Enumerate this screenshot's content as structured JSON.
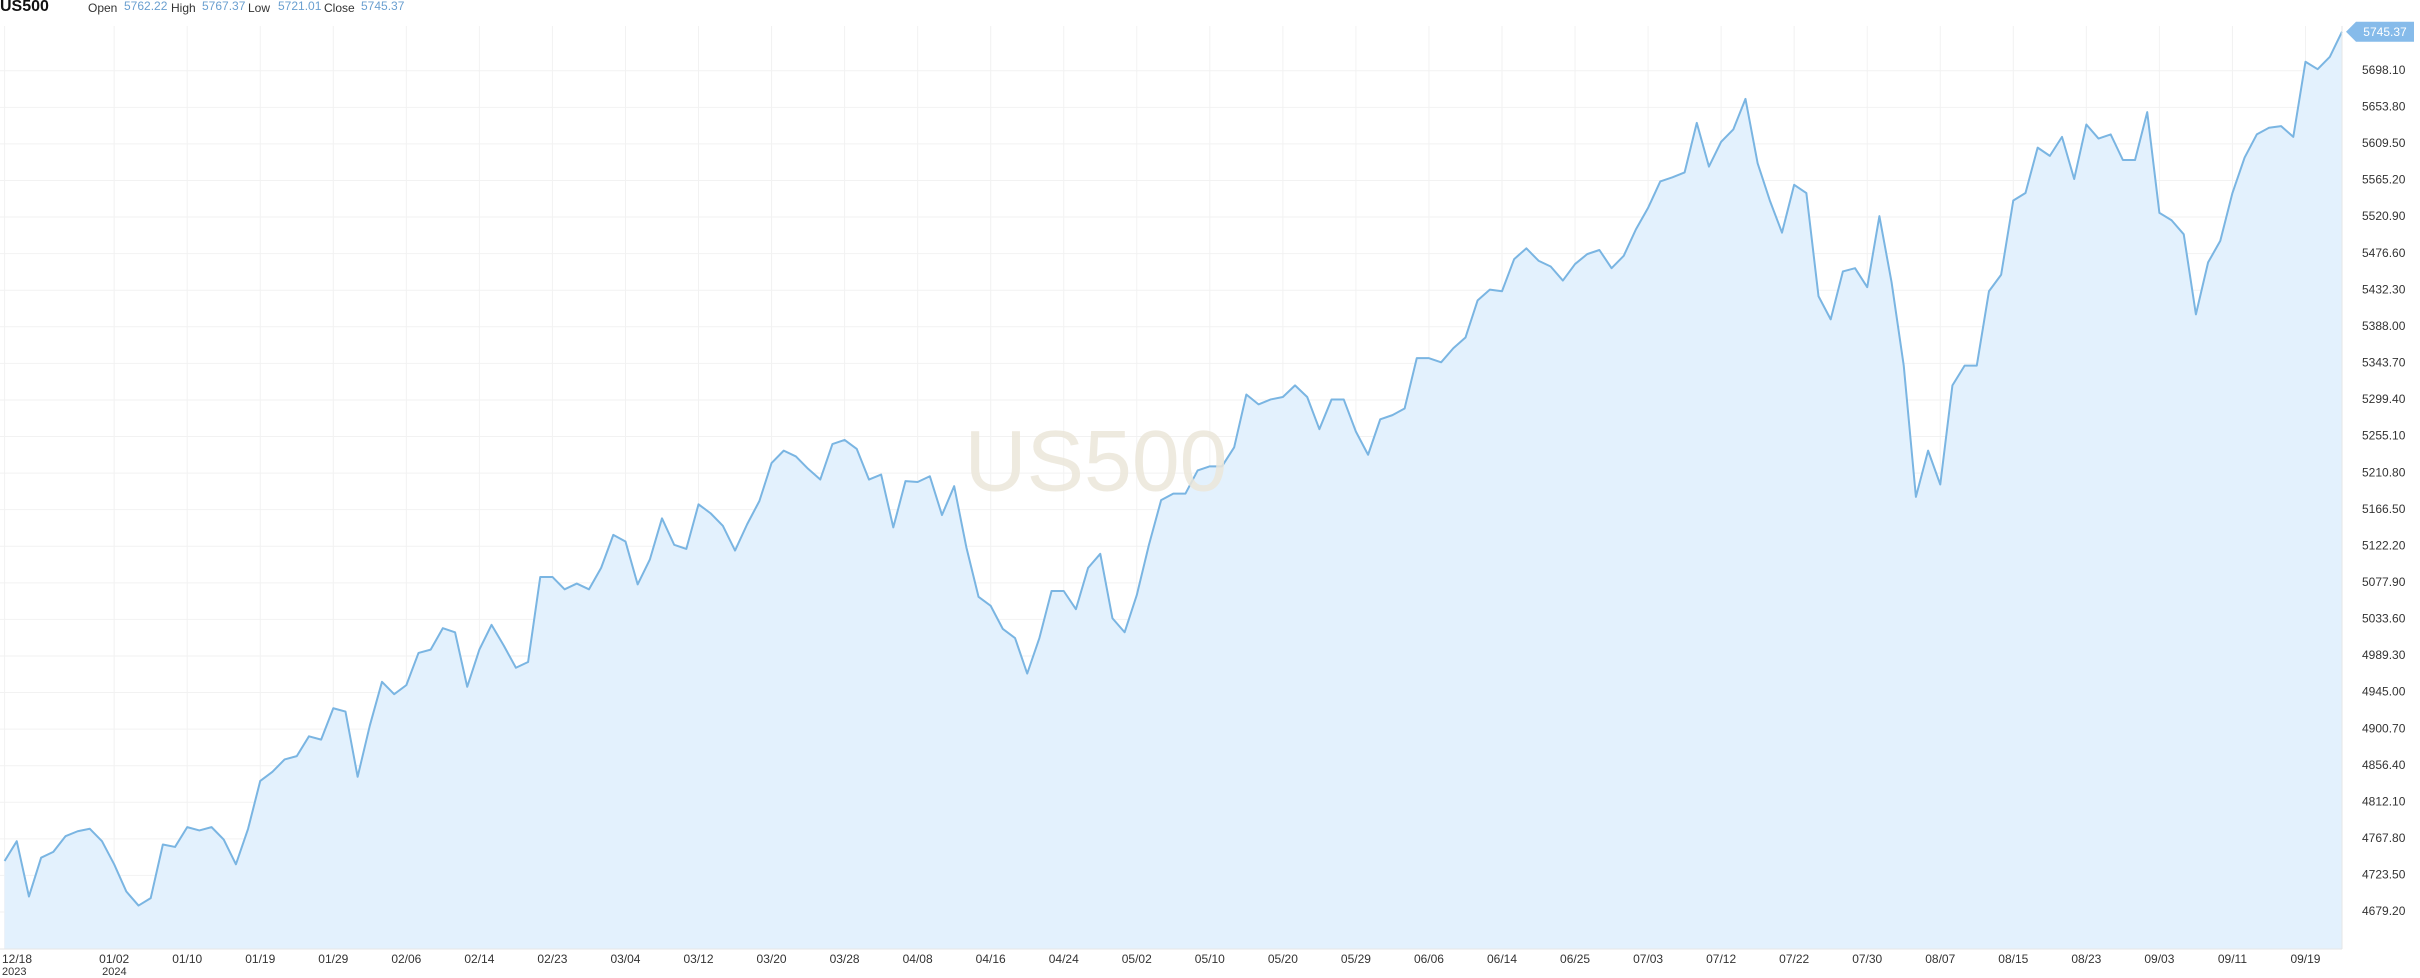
{
  "chart_data": {
    "type": "area",
    "title": "US500",
    "ohlc": [
      {
        "label": "Open",
        "value": 5762.22
      },
      {
        "label": "High",
        "value": 5767.37
      },
      {
        "label": "Low",
        "value": 5721.01
      },
      {
        "label": "Close",
        "value": 5745.37
      }
    ],
    "watermark": "US500",
    "color": "#7ab5e2",
    "fill": "#e3f1fd",
    "grid": true,
    "categories": [
      "12/18",
      null,
      null,
      null,
      null,
      null,
      null,
      null,
      null,
      "01/02",
      null,
      null,
      null,
      null,
      null,
      "01/10",
      null,
      null,
      null,
      null,
      null,
      "01/19",
      null,
      null,
      null,
      null,
      null,
      "01/29",
      null,
      null,
      null,
      null,
      null,
      "02/06",
      null,
      null,
      null,
      null,
      null,
      "02/14",
      null,
      null,
      null,
      null,
      null,
      "02/23",
      null,
      null,
      null,
      null,
      null,
      "03/04",
      null,
      null,
      null,
      null,
      null,
      "03/12",
      null,
      null,
      null,
      null,
      null,
      "03/20",
      null,
      null,
      null,
      null,
      null,
      "03/28",
      null,
      null,
      null,
      null,
      null,
      "04/08",
      null,
      null,
      null,
      null,
      null,
      "04/16",
      null,
      null,
      null,
      null,
      null,
      "04/24",
      null,
      null,
      null,
      null,
      null,
      "05/02",
      null,
      null,
      null,
      null,
      null,
      "05/10",
      null,
      null,
      null,
      null,
      null,
      "05/20",
      null,
      null,
      null,
      null,
      null,
      "05/29",
      null,
      null,
      null,
      null,
      null,
      "06/06",
      null,
      null,
      null,
      null,
      null,
      "06/14",
      null,
      null,
      null,
      null,
      null,
      "06/25",
      null,
      null,
      null,
      null,
      null,
      "07/03",
      null,
      null,
      null,
      null,
      null,
      "07/12",
      null,
      null,
      null,
      null,
      null,
      "07/22",
      null,
      null,
      null,
      null,
      null,
      "07/30",
      null,
      null,
      null,
      null,
      null,
      "08/07",
      null,
      null,
      null,
      null,
      null,
      "08/15",
      null,
      null,
      null,
      null,
      null,
      "08/23",
      null,
      null,
      null,
      null,
      null,
      "09/03",
      null,
      null,
      null,
      null,
      null,
      "09/11",
      null,
      null,
      null,
      null,
      null,
      "09/19",
      null,
      null,
      null
    ],
    "x_sublabels": [
      "2023",
      null,
      null,
      null,
      null,
      null,
      null,
      null,
      null,
      "2024",
      null,
      null,
      null,
      null,
      null,
      null,
      null,
      null,
      null,
      null,
      null,
      null,
      null,
      null,
      null,
      null,
      null,
      null,
      null,
      null,
      null,
      null,
      null,
      null,
      null,
      null,
      null,
      null,
      null,
      null,
      null,
      null,
      null,
      null,
      null,
      null,
      null,
      null,
      null,
      null,
      null,
      null,
      null,
      null,
      null,
      null,
      null,
      null,
      null,
      null,
      null,
      null,
      null,
      null,
      null,
      null,
      null,
      null,
      null,
      null,
      null,
      null,
      null,
      null,
      null,
      null,
      null,
      null,
      null,
      null,
      null,
      null,
      null,
      null,
      null,
      null,
      null,
      null,
      null,
      null,
      null,
      null,
      null,
      null,
      null,
      null,
      null,
      null,
      null,
      null,
      null,
      null,
      null,
      null,
      null,
      null,
      null,
      null,
      null,
      null,
      null,
      null,
      null,
      null,
      null,
      null,
      null,
      null,
      null,
      null,
      null,
      null,
      null,
      null,
      null,
      null,
      null,
      null,
      null,
      null,
      null,
      null,
      null,
      null,
      null,
      null,
      null,
      null,
      null,
      null,
      null,
      null,
      null,
      null,
      null,
      null,
      null,
      null,
      null,
      null,
      null,
      null,
      null,
      null,
      null,
      null,
      null,
      null,
      null,
      null,
      null,
      null,
      null,
      null,
      null,
      null,
      null,
      null,
      null,
      null,
      null,
      null,
      null,
      null,
      null,
      null,
      null,
      null,
      null,
      null,
      null,
      null,
      null,
      null,
      null,
      null,
      null,
      null,
      null,
      null,
      null,
      null,
      null
    ],
    "values": [
      4741,
      4765,
      4698,
      4745,
      4752,
      4771,
      4777,
      4780,
      4765,
      4737,
      4704,
      4687,
      4696,
      4761,
      4758,
      4782,
      4778,
      4782,
      4767,
      4737,
      4780,
      4838,
      4849,
      4864,
      4868,
      4892,
      4888,
      4926,
      4922,
      4843,
      4905,
      4958,
      4943,
      4954,
      4993,
      4997,
      5023,
      5018,
      4952,
      4997,
      5027,
      5002,
      4975,
      4982,
      5085,
      5085,
      5070,
      5077,
      5070,
      5096,
      5136,
      5128,
      5076,
      5106,
      5156,
      5124,
      5119,
      5173,
      5162,
      5147,
      5117,
      5149,
      5177,
      5223,
      5238,
      5231,
      5216,
      5203,
      5246,
      5251,
      5240,
      5203,
      5209,
      5145,
      5201,
      5200,
      5207,
      5160,
      5195,
      5121,
      5061,
      5050,
      5022,
      5011,
      4968,
      5011,
      5068,
      5068,
      5046,
      5096,
      5113,
      5035,
      5018,
      5063,
      5124,
      5178,
      5186,
      5186,
      5214,
      5219,
      5219,
      5242,
      5306,
      5294,
      5300,
      5303,
      5317,
      5303,
      5264,
      5300,
      5300,
      5261,
      5233,
      5276,
      5281,
      5289,
      5350,
      5350,
      5345,
      5362,
      5375,
      5420,
      5433,
      5431,
      5470,
      5483,
      5468,
      5461,
      5444,
      5464,
      5476,
      5481,
      5459,
      5474,
      5506,
      5532,
      5564,
      5569,
      5575,
      5635,
      5582,
      5612,
      5627,
      5664,
      5586,
      5541,
      5502,
      5560,
      5550,
      5425,
      5397,
      5455,
      5459,
      5436,
      5522,
      5442,
      5341,
      5182,
      5238,
      5197,
      5317,
      5341,
      5341,
      5431,
      5451,
      5541,
      5550,
      5605,
      5595,
      5618,
      5567,
      5633,
      5616,
      5621,
      5590,
      5590,
      5648,
      5526,
      5517,
      5500,
      5403,
      5466,
      5492,
      5550,
      5593,
      5621,
      5629,
      5631,
      5618,
      5709,
      5700,
      5715,
      5745.37
    ],
    "ylim": [
      4634.4,
      5752.3
    ],
    "yticks": [
      {
        "value": 4679.2,
        "label": "4679.20"
      },
      {
        "value": 4723.5,
        "label": "4723.50"
      },
      {
        "value": 4767.8,
        "label": "4767.80"
      },
      {
        "value": 4812.1,
        "label": "4812.10"
      },
      {
        "value": 4856.4,
        "label": "4856.40"
      },
      {
        "value": 4900.7,
        "label": "4900.70"
      },
      {
        "value": 4945,
        "label": "4945.00"
      },
      {
        "value": 4989.3,
        "label": "4989.30"
      },
      {
        "value": 5033.6,
        "label": "5033.60"
      },
      {
        "value": 5077.9,
        "label": "5077.90"
      },
      {
        "value": 5122.2,
        "label": "5122.20"
      },
      {
        "value": 5166.5,
        "label": "5166.50"
      },
      {
        "value": 5210.8,
        "label": "5210.80"
      },
      {
        "value": 5255.1,
        "label": "5255.10"
      },
      {
        "value": 5299.4,
        "label": "5299.40"
      },
      {
        "value": 5343.7,
        "label": "5343.70"
      },
      {
        "value": 5388,
        "label": "5388.00"
      },
      {
        "value": 5432.3,
        "label": "5432.30"
      },
      {
        "value": 5476.6,
        "label": "5476.60"
      },
      {
        "value": 5520.9,
        "label": "5520.90"
      },
      {
        "value": 5565.2,
        "label": "5565.20"
      },
      {
        "value": 5609.5,
        "label": "5609.50"
      },
      {
        "value": 5653.8,
        "label": "5653.80"
      },
      {
        "value": 5698.1,
        "label": "5698.10"
      }
    ]
  }
}
